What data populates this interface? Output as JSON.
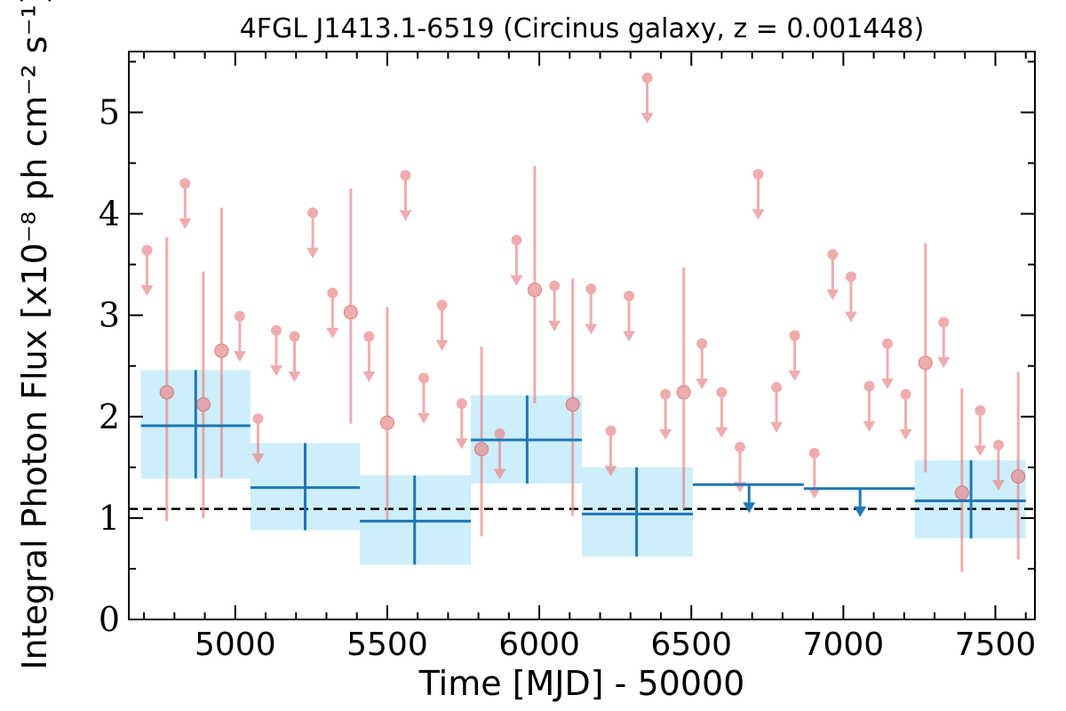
{
  "chart_data": {
    "type": "scatter",
    "title": "4FGL J1413.1-6519 (Circinus galaxy, z = 0.001448)",
    "xlabel": "Time [MJD] - 50000",
    "ylabel": "Integral Photon Flux [x10⁻⁸ ph cm⁻² s⁻¹]",
    "xlim": [
      4650,
      7630
    ],
    "ylim": [
      0,
      5.6
    ],
    "xticks": [
      5000,
      5500,
      6000,
      6500,
      7000,
      7500
    ],
    "yticks": [
      0,
      1,
      2,
      3,
      4,
      5
    ],
    "reference_line": 1.09,
    "colors": {
      "short_bin": "#e8898c",
      "long_bin": "#1f77b4",
      "band_fill": "#cdeefb"
    },
    "long_bins": [
      {
        "x": 4870,
        "x_lo": 4690,
        "x_hi": 5050,
        "y": 1.91,
        "y_lo": 1.39,
        "y_hi": 2.46,
        "limit": false
      },
      {
        "x": 5230,
        "x_lo": 5050,
        "x_hi": 5410,
        "y": 1.3,
        "y_lo": 0.88,
        "y_hi": 1.74,
        "limit": false
      },
      {
        "x": 5590,
        "x_lo": 5410,
        "x_hi": 5775,
        "y": 0.97,
        "y_lo": 0.54,
        "y_hi": 1.42,
        "limit": false
      },
      {
        "x": 5960,
        "x_lo": 5775,
        "x_hi": 6140,
        "y": 1.77,
        "y_lo": 1.34,
        "y_hi": 2.21,
        "limit": false
      },
      {
        "x": 6320,
        "x_lo": 6140,
        "x_hi": 6505,
        "y": 1.04,
        "y_lo": 0.62,
        "y_hi": 1.5,
        "limit": false
      },
      {
        "x": 6690,
        "x_lo": 6505,
        "x_hi": 6870,
        "y": 1.33,
        "limit": true
      },
      {
        "x": 7055,
        "x_lo": 6870,
        "x_hi": 7235,
        "y": 1.29,
        "limit": true
      },
      {
        "x": 7420,
        "x_lo": 7235,
        "x_hi": 7600,
        "y": 1.17,
        "y_lo": 0.8,
        "y_hi": 1.57,
        "limit": false
      }
    ],
    "short_bins": [
      {
        "x": 4710,
        "y": 3.64,
        "limit": true
      },
      {
        "x": 4775,
        "y": 2.24,
        "y_lo": 0.97,
        "y_hi": 3.77,
        "limit": false
      },
      {
        "x": 4835,
        "y": 4.3,
        "limit": true
      },
      {
        "x": 4895,
        "y": 2.12,
        "y_lo": 1.0,
        "y_hi": 3.43,
        "limit": false
      },
      {
        "x": 4955,
        "y": 2.65,
        "y_lo": 1.4,
        "y_hi": 4.06,
        "limit": false
      },
      {
        "x": 5015,
        "y": 2.99,
        "limit": true
      },
      {
        "x": 5075,
        "y": 1.98,
        "limit": true
      },
      {
        "x": 5135,
        "y": 2.85,
        "limit": true
      },
      {
        "x": 5195,
        "y": 2.79,
        "limit": true
      },
      {
        "x": 5255,
        "y": 4.01,
        "limit": true
      },
      {
        "x": 5320,
        "y": 3.22,
        "limit": true
      },
      {
        "x": 5380,
        "y": 3.03,
        "y_lo": 1.93,
        "y_hi": 4.25,
        "limit": false
      },
      {
        "x": 5440,
        "y": 2.79,
        "limit": true
      },
      {
        "x": 5500,
        "y": 1.94,
        "y_lo": 0.96,
        "y_hi": 3.08,
        "limit": false
      },
      {
        "x": 5560,
        "y": 4.38,
        "limit": true
      },
      {
        "x": 5620,
        "y": 2.38,
        "limit": true
      },
      {
        "x": 5680,
        "y": 3.1,
        "limit": true
      },
      {
        "x": 5745,
        "y": 2.13,
        "limit": true
      },
      {
        "x": 5810,
        "y": 1.68,
        "y_lo": 0.82,
        "y_hi": 2.69,
        "limit": false
      },
      {
        "x": 5870,
        "y": 1.83,
        "limit": true
      },
      {
        "x": 5925,
        "y": 3.74,
        "limit": true
      },
      {
        "x": 5985,
        "y": 3.25,
        "y_lo": 2.13,
        "y_hi": 4.47,
        "limit": false
      },
      {
        "x": 6050,
        "y": 3.29,
        "limit": true
      },
      {
        "x": 6110,
        "y": 2.12,
        "y_lo": 1.02,
        "y_hi": 3.36,
        "limit": false
      },
      {
        "x": 6170,
        "y": 3.26,
        "limit": true
      },
      {
        "x": 6235,
        "y": 1.86,
        "limit": true
      },
      {
        "x": 6295,
        "y": 3.19,
        "limit": true
      },
      {
        "x": 6355,
        "y": 5.34,
        "limit": true
      },
      {
        "x": 6415,
        "y": 2.22,
        "limit": true
      },
      {
        "x": 6475,
        "y": 2.24,
        "y_lo": 1.09,
        "y_hi": 3.47,
        "limit": false
      },
      {
        "x": 6535,
        "y": 2.72,
        "limit": true
      },
      {
        "x": 6600,
        "y": 2.24,
        "limit": true
      },
      {
        "x": 6660,
        "y": 1.7,
        "limit": true
      },
      {
        "x": 6720,
        "y": 4.39,
        "limit": true
      },
      {
        "x": 6780,
        "y": 2.29,
        "limit": true
      },
      {
        "x": 6840,
        "y": 2.8,
        "limit": true
      },
      {
        "x": 6905,
        "y": 1.64,
        "limit": true
      },
      {
        "x": 6965,
        "y": 3.6,
        "limit": true
      },
      {
        "x": 7025,
        "y": 3.38,
        "limit": true
      },
      {
        "x": 7085,
        "y": 2.3,
        "limit": true
      },
      {
        "x": 7145,
        "y": 2.72,
        "limit": true
      },
      {
        "x": 7205,
        "y": 2.22,
        "limit": true
      },
      {
        "x": 7270,
        "y": 2.53,
        "y_lo": 1.45,
        "y_hi": 3.71,
        "limit": false
      },
      {
        "x": 7330,
        "y": 2.93,
        "limit": true
      },
      {
        "x": 7390,
        "y": 1.25,
        "y_lo": 0.47,
        "y_hi": 2.28,
        "limit": false
      },
      {
        "x": 7450,
        "y": 2.06,
        "limit": true
      },
      {
        "x": 7510,
        "y": 1.72,
        "limit": true
      },
      {
        "x": 7575,
        "y": 1.41,
        "y_lo": 0.59,
        "y_hi": 2.44,
        "limit": false
      }
    ]
  }
}
